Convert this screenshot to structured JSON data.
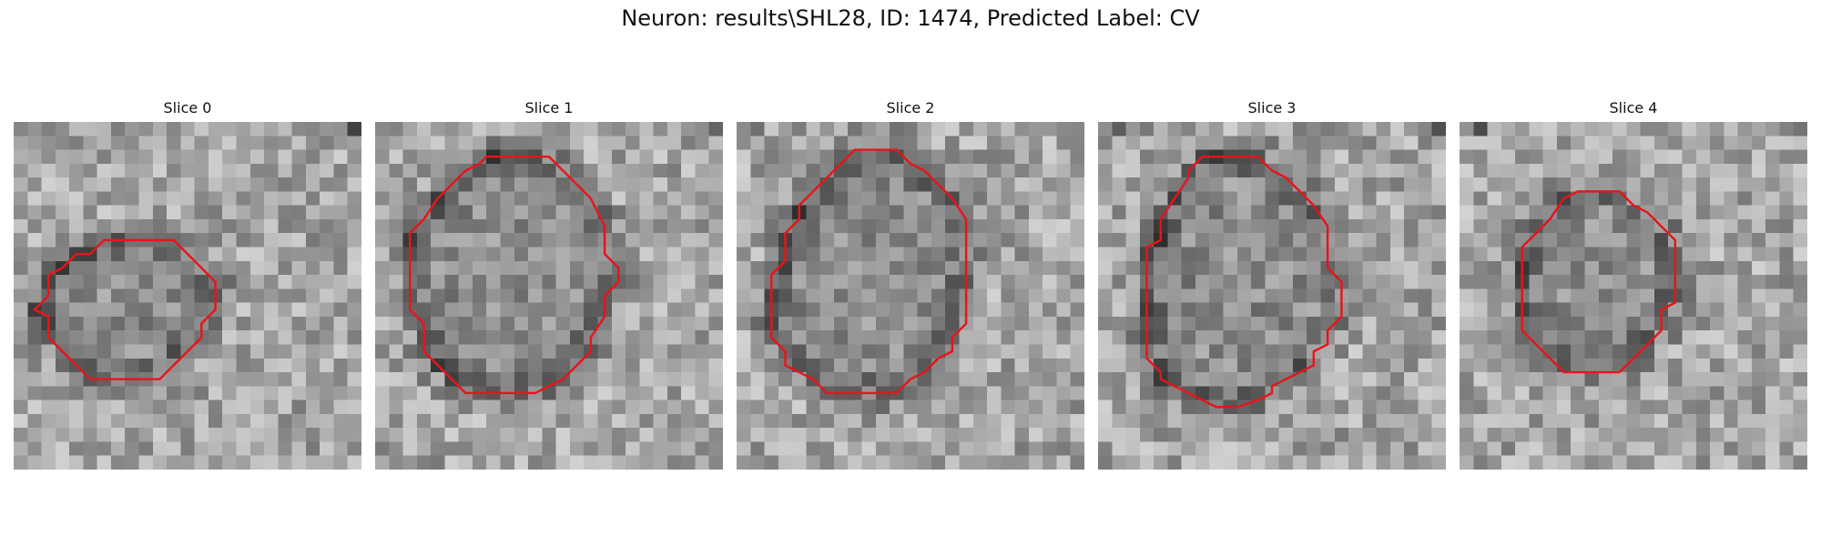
{
  "figure": {
    "suptitle": "Neuron: results\\SHL28, ID: 1474, Predicted Label: CV"
  },
  "contour_color": "#e8141a",
  "slices": [
    {
      "title": "Slice 0",
      "contour": [
        [
          9.5,
          8.5
        ],
        [
          11.5,
          8.5
        ],
        [
          12.5,
          9.5
        ],
        [
          13.5,
          10.5
        ],
        [
          14.5,
          11.5
        ],
        [
          14.5,
          13.5
        ],
        [
          13.5,
          14.5
        ],
        [
          13.5,
          15.5
        ],
        [
          12.5,
          16.5
        ],
        [
          11.5,
          17.5
        ],
        [
          10.5,
          18.5
        ],
        [
          8,
          18.5
        ],
        [
          5.5,
          18.5
        ],
        [
          4.5,
          17.5
        ],
        [
          3.5,
          16.5
        ],
        [
          2.5,
          15.5
        ],
        [
          2.5,
          14
        ],
        [
          1.5,
          13.5
        ],
        [
          2.5,
          12.5
        ],
        [
          2.5,
          11
        ],
        [
          3.5,
          10.5
        ],
        [
          4.5,
          9.5
        ],
        [
          5.5,
          9.5
        ],
        [
          6.5,
          8.5
        ],
        [
          8,
          8.5
        ]
      ]
    },
    {
      "title": "Slice 1",
      "contour": [
        [
          7.5,
          3
        ],
        [
          8,
          2.5
        ],
        [
          10,
          2.5
        ],
        [
          12.5,
          2.5
        ],
        [
          13,
          3
        ],
        [
          14.5,
          4.5
        ],
        [
          15.5,
          5.5
        ],
        [
          16.5,
          7.5
        ],
        [
          16.5,
          9.5
        ],
        [
          17.5,
          10.5
        ],
        [
          17.5,
          11.5
        ],
        [
          16.5,
          12.5
        ],
        [
          16.5,
          14
        ],
        [
          15.5,
          15.5
        ],
        [
          15.5,
          16.5
        ],
        [
          14.5,
          17.5
        ],
        [
          13.5,
          18.5
        ],
        [
          12.5,
          19
        ],
        [
          11.5,
          19.5
        ],
        [
          10,
          19.5
        ],
        [
          8,
          19.5
        ],
        [
          6.5,
          19.5
        ],
        [
          5.5,
          18.5
        ],
        [
          4.5,
          17.5
        ],
        [
          3.5,
          16.5
        ],
        [
          3.5,
          15.5
        ],
        [
          3.5,
          14.5
        ],
        [
          2.5,
          13.5
        ],
        [
          2.5,
          12
        ],
        [
          2.5,
          10
        ],
        [
          2.5,
          8
        ],
        [
          3.5,
          7
        ],
        [
          4.5,
          5.5
        ],
        [
          5.5,
          4.5
        ],
        [
          6.5,
          3.5
        ]
      ]
    },
    {
      "title": "Slice 2",
      "contour": [
        [
          10.5,
          2
        ],
        [
          11.5,
          2
        ],
        [
          12.5,
          3
        ],
        [
          13.5,
          3.5
        ],
        [
          14.5,
          4.5
        ],
        [
          15.5,
          5.5
        ],
        [
          16.5,
          7
        ],
        [
          16.5,
          9
        ],
        [
          16.5,
          11
        ],
        [
          16.5,
          13
        ],
        [
          16.5,
          14.5
        ],
        [
          15.5,
          15.5
        ],
        [
          15.5,
          16.5
        ],
        [
          14.5,
          17
        ],
        [
          13.5,
          18
        ],
        [
          12.5,
          18.5
        ],
        [
          11.5,
          19.5
        ],
        [
          10,
          19.5
        ],
        [
          8,
          19.5
        ],
        [
          6.5,
          19.5
        ],
        [
          5.5,
          18.5
        ],
        [
          4.5,
          18
        ],
        [
          3.5,
          17.5
        ],
        [
          3.5,
          16.5
        ],
        [
          2.5,
          15.5
        ],
        [
          2.5,
          14
        ],
        [
          2.5,
          12
        ],
        [
          2.5,
          11
        ],
        [
          3.5,
          10
        ],
        [
          3.5,
          8
        ],
        [
          4.5,
          7
        ],
        [
          4.5,
          6
        ],
        [
          5.5,
          5
        ],
        [
          6.5,
          4
        ],
        [
          7.5,
          3
        ],
        [
          8.5,
          2
        ]
      ]
    },
    {
      "title": "Slice 3",
      "contour": [
        [
          7.5,
          2.5
        ],
        [
          9.5,
          2.5
        ],
        [
          11.5,
          2.5
        ],
        [
          12.5,
          3.5
        ],
        [
          13.5,
          4
        ],
        [
          14.5,
          5
        ],
        [
          15.5,
          6
        ],
        [
          16.5,
          7.5
        ],
        [
          16.5,
          9
        ],
        [
          16.5,
          10.5
        ],
        [
          17.5,
          11.5
        ],
        [
          17.5,
          13
        ],
        [
          17.5,
          14
        ],
        [
          16.5,
          15
        ],
        [
          16.5,
          16
        ],
        [
          15.5,
          16.5
        ],
        [
          15.5,
          17.5
        ],
        [
          14.5,
          18
        ],
        [
          13.5,
          18.5
        ],
        [
          12.5,
          19
        ],
        [
          12.5,
          19.5
        ],
        [
          11.5,
          20
        ],
        [
          10,
          20.5
        ],
        [
          8.5,
          20.5
        ],
        [
          7.5,
          20
        ],
        [
          6.5,
          19.5
        ],
        [
          5.5,
          19
        ],
        [
          4.5,
          18.5
        ],
        [
          4.5,
          18
        ],
        [
          3.5,
          17
        ],
        [
          3.5,
          16
        ],
        [
          3.5,
          14.5
        ],
        [
          3.5,
          13
        ],
        [
          3.5,
          11
        ],
        [
          3.5,
          9
        ],
        [
          4.5,
          8.5
        ],
        [
          4.5,
          7
        ],
        [
          5.5,
          5.5
        ],
        [
          6.5,
          4
        ],
        [
          6.5,
          3.5
        ]
      ]
    },
    {
      "title": "Slice 4",
      "contour": [
        [
          8.5,
          5
        ],
        [
          11.5,
          5
        ],
        [
          12.5,
          6
        ],
        [
          13.5,
          6.5
        ],
        [
          14.5,
          7.5
        ],
        [
          15.5,
          8.5
        ],
        [
          15.5,
          10
        ],
        [
          15.5,
          11.5
        ],
        [
          15.5,
          13
        ],
        [
          14.5,
          13.5
        ],
        [
          14.5,
          15
        ],
        [
          13.5,
          16
        ],
        [
          12.5,
          17
        ],
        [
          11.5,
          18
        ],
        [
          10,
          18
        ],
        [
          8,
          18
        ],
        [
          7.5,
          18
        ],
        [
          6.5,
          17
        ],
        [
          5.5,
          16
        ],
        [
          4.5,
          15
        ],
        [
          4.5,
          13.5
        ],
        [
          4.5,
          11
        ],
        [
          4.5,
          9
        ],
        [
          5.5,
          8
        ],
        [
          6.5,
          7
        ],
        [
          7.5,
          5.5
        ]
      ]
    }
  ]
}
